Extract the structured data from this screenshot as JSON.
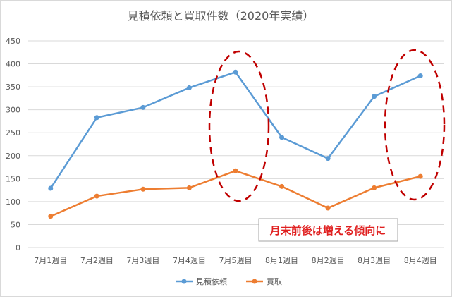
{
  "chart_data": {
    "type": "line",
    "title": "見積依頼と買取件数（2020年実績）",
    "xlabel": "",
    "ylabel": "",
    "categories": [
      "7月1週目",
      "7月2週目",
      "7月3週目",
      "7月4週目",
      "7月5週目",
      "8月1週目",
      "8月2週目",
      "8月3週目",
      "8月4週目"
    ],
    "series": [
      {
        "name": "見積依頼",
        "color": "#5b9bd5",
        "values": [
          129,
          283,
          305,
          348,
          382,
          240,
          194,
          329,
          374
        ]
      },
      {
        "name": "買取",
        "color": "#ed7d31",
        "values": [
          68,
          112,
          127,
          130,
          167,
          133,
          86,
          130,
          155
        ]
      }
    ],
    "ylim": [
      0,
      450
    ],
    "yticks": [
      0,
      50,
      100,
      150,
      200,
      250,
      300,
      350,
      400,
      450
    ],
    "grid": true,
    "legend_position": "bottom",
    "annotation": {
      "text": "月末前後は増える傾向に",
      "color": "#e02020"
    },
    "highlight_color": "#c00000"
  }
}
